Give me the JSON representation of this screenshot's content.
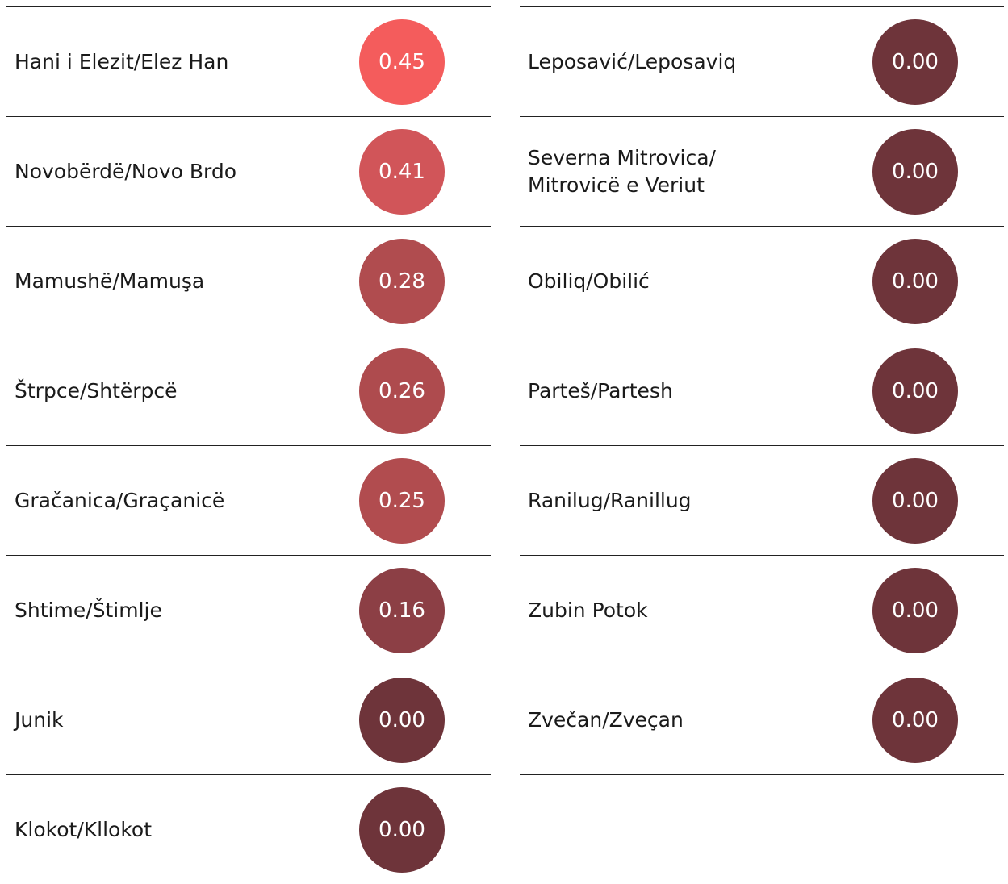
{
  "columns": [
    {
      "items": [
        {
          "name": "Hani i Elezit/Elez Han",
          "value": "0.45",
          "color": "#f45c5c"
        },
        {
          "name": "Novobërdë/Novo Brdo",
          "value": "0.41",
          "color": "#d15559"
        },
        {
          "name": "Mamushë/Mamuşa",
          "value": "0.28",
          "color": "#b04c4f"
        },
        {
          "name": "Štrpce/Shtërpcë",
          "value": "0.26",
          "color": "#ae4b4e"
        },
        {
          "name": "Gračanica/Graçanicë",
          "value": "0.25",
          "color": "#b14c4f"
        },
        {
          "name": "Shtime/Štimlje",
          "value": "0.16",
          "color": "#8c3f45"
        },
        {
          "name": "Junik",
          "value": "0.00",
          "color": "#6e343a"
        },
        {
          "name": "Klokot/Kllokot",
          "value": "0.00",
          "color": "#6e343a"
        }
      ]
    },
    {
      "items": [
        {
          "name": "Leposavić/Leposaviq",
          "value": "0.00",
          "color": "#6e343a"
        },
        {
          "name": [
            "Severna Mitrovica/",
            "Mitrovicë e Veriut"
          ],
          "value": "0.00",
          "color": "#6e343a"
        },
        {
          "name": "Obiliq/Obilić",
          "value": "0.00",
          "color": "#6e343a"
        },
        {
          "name": "Parteš/Partesh",
          "value": "0.00",
          "color": "#6e343a"
        },
        {
          "name": "Ranilug/Ranillug",
          "value": "0.00",
          "color": "#6e343a"
        },
        {
          "name": "Zubin Potok",
          "value": "0.00",
          "color": "#6e343a"
        },
        {
          "name": "Zvečan/Zveçan",
          "value": "0.00",
          "color": "#6e343a"
        }
      ]
    }
  ]
}
